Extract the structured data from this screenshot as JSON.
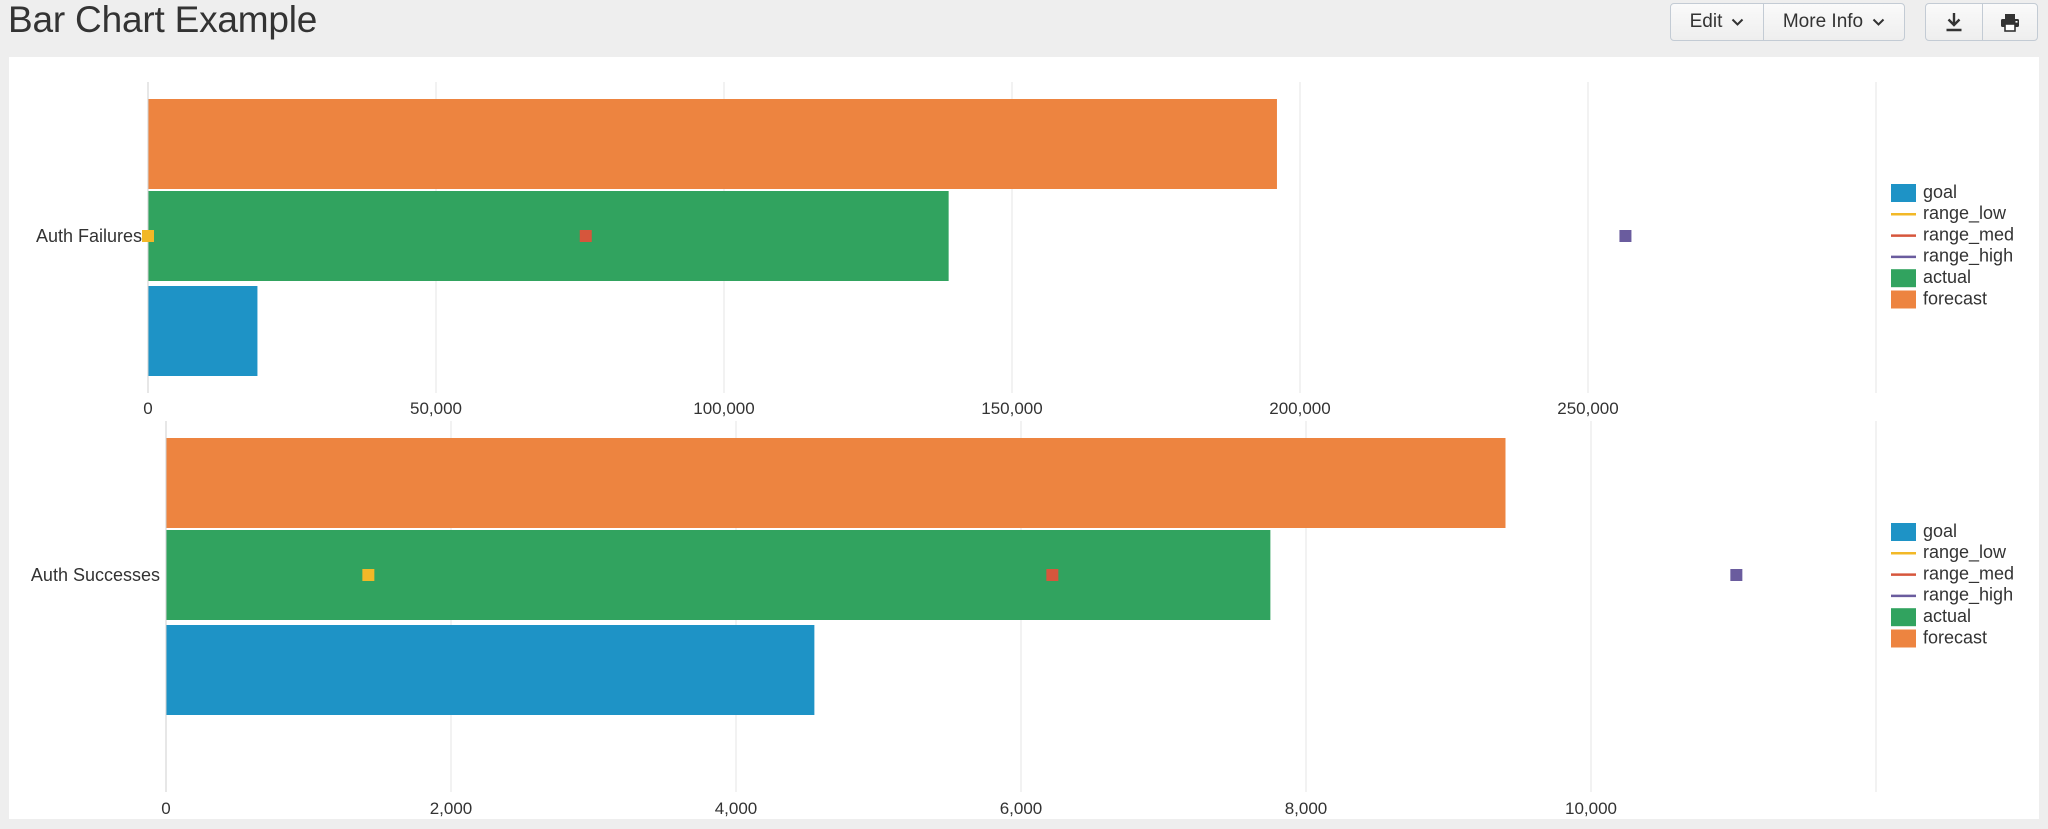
{
  "header": {
    "title": "Bar Chart Example",
    "edit_label": "Edit",
    "more_info_label": "More Info"
  },
  "legend": [
    {
      "name": "goal",
      "color": "#1e93c6",
      "shape": "square"
    },
    {
      "name": "range_low",
      "color": "#f2b827",
      "shape": "line"
    },
    {
      "name": "range_med",
      "color": "#d6563c",
      "shape": "line"
    },
    {
      "name": "range_high",
      "color": "#6a5c9e",
      "shape": "line"
    },
    {
      "name": "actual",
      "color": "#31a35f",
      "shape": "square"
    },
    {
      "name": "forecast",
      "color": "#ed8440",
      "shape": "square"
    }
  ],
  "chart_data": [
    {
      "type": "bar",
      "orientation": "horizontal",
      "categories": [
        "Auth Failures"
      ],
      "xlim": [
        0,
        300000
      ],
      "ticks": [
        0,
        50000,
        100000,
        150000,
        200000,
        250000
      ],
      "tick_labels": [
        "0",
        "50,000",
        "100,000",
        "150,000",
        "200,000",
        "250,000"
      ],
      "series": [
        {
          "name": "forecast",
          "values": [
            196000
          ],
          "color": "#ed8440"
        },
        {
          "name": "actual",
          "values": [
            139000
          ],
          "color": "#31a35f"
        },
        {
          "name": "goal",
          "values": [
            19000
          ],
          "color": "#1e93c6"
        }
      ],
      "markers": [
        {
          "name": "range_low",
          "value": 0,
          "color": "#f2b827"
        },
        {
          "name": "range_med",
          "value": 76000,
          "color": "#d6563c"
        },
        {
          "name": "range_high",
          "value": 256500,
          "color": "#6a5c9e"
        }
      ],
      "grid": true,
      "legend_position": "right"
    },
    {
      "type": "bar",
      "orientation": "horizontal",
      "categories": [
        "Auth Successes"
      ],
      "xlim": [
        0,
        12000
      ],
      "ticks": [
        0,
        2000,
        4000,
        6000,
        8000,
        10000
      ],
      "tick_labels": [
        "0",
        "2,000",
        "4,000",
        "6,000",
        "8,000",
        "10,000"
      ],
      "series": [
        {
          "name": "forecast",
          "values": [
            9400
          ],
          "color": "#ed8440"
        },
        {
          "name": "actual",
          "values": [
            7750
          ],
          "color": "#31a35f"
        },
        {
          "name": "goal",
          "values": [
            4550
          ],
          "color": "#1e93c6"
        }
      ],
      "markers": [
        {
          "name": "range_low",
          "value": 1420,
          "color": "#f2b827"
        },
        {
          "name": "range_med",
          "value": 6220,
          "color": "#d6563c"
        },
        {
          "name": "range_high",
          "value": 11020,
          "color": "#6a5c9e"
        }
      ],
      "grid": true,
      "legend_position": "right"
    }
  ]
}
